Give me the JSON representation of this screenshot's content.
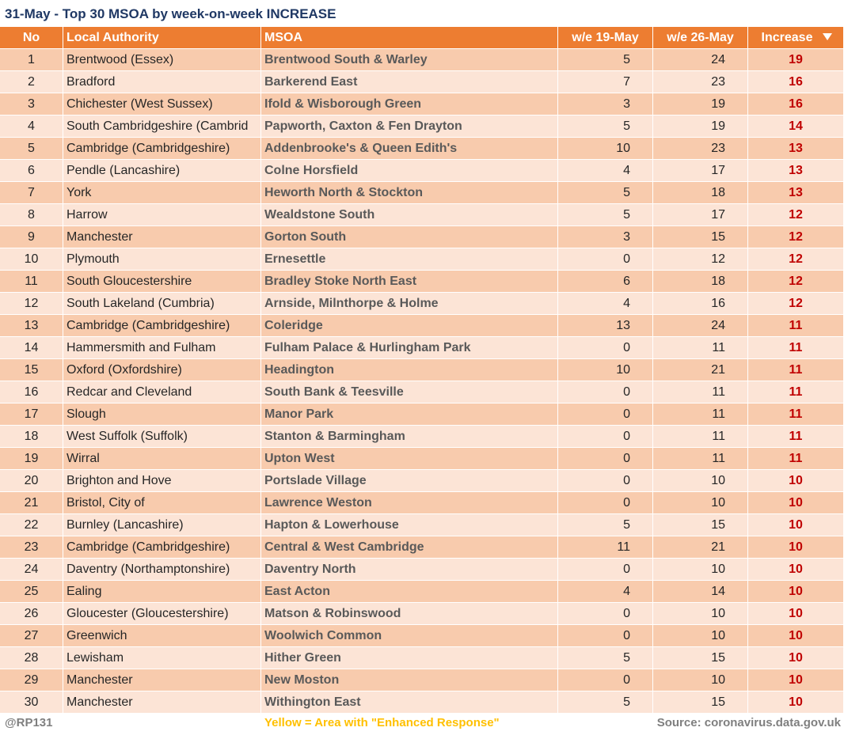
{
  "title": "31-May - Top 30 MSOA by week-on-week INCREASE",
  "table": {
    "header": [
      "No",
      "Local Authority",
      "MSOA",
      "w/e 19-May",
      "w/e 26-May",
      "Increase"
    ],
    "rows": [
      [
        1,
        "Brentwood (Essex)",
        "Brentwood South & Warley",
        5,
        24,
        19
      ],
      [
        2,
        "Bradford",
        "Barkerend East",
        7,
        23,
        16
      ],
      [
        3,
        "Chichester (West Sussex)",
        "Ifold & Wisborough Green",
        3,
        19,
        16
      ],
      [
        4,
        "South Cambridgeshire (Cambrid",
        "Papworth, Caxton & Fen Drayton",
        5,
        19,
        14
      ],
      [
        5,
        "Cambridge (Cambridgeshire)",
        "Addenbrooke's & Queen Edith's",
        10,
        23,
        13
      ],
      [
        6,
        "Pendle (Lancashire)",
        "Colne Horsfield",
        4,
        17,
        13
      ],
      [
        7,
        "York",
        "Heworth North & Stockton",
        5,
        18,
        13
      ],
      [
        8,
        "Harrow",
        "Wealdstone South",
        5,
        17,
        12
      ],
      [
        9,
        "Manchester",
        "Gorton South",
        3,
        15,
        12
      ],
      [
        10,
        "Plymouth",
        "Ernesettle",
        0,
        12,
        12
      ],
      [
        11,
        "South Gloucestershire",
        "Bradley Stoke North East",
        6,
        18,
        12
      ],
      [
        12,
        "South Lakeland (Cumbria)",
        "Arnside, Milnthorpe & Holme",
        4,
        16,
        12
      ],
      [
        13,
        "Cambridge (Cambridgeshire)",
        "Coleridge",
        13,
        24,
        11
      ],
      [
        14,
        "Hammersmith and Fulham",
        "Fulham Palace & Hurlingham Park",
        0,
        11,
        11
      ],
      [
        15,
        "Oxford (Oxfordshire)",
        "Headington",
        10,
        21,
        11
      ],
      [
        16,
        "Redcar and Cleveland",
        "South Bank & Teesville",
        0,
        11,
        11
      ],
      [
        17,
        "Slough",
        "Manor Park",
        0,
        11,
        11
      ],
      [
        18,
        "West Suffolk (Suffolk)",
        "Stanton & Barmingham",
        0,
        11,
        11
      ],
      [
        19,
        "Wirral",
        "Upton West",
        0,
        11,
        11
      ],
      [
        20,
        "Brighton and Hove",
        "Portslade Village",
        0,
        10,
        10
      ],
      [
        21,
        "Bristol, City of",
        "Lawrence Weston",
        0,
        10,
        10
      ],
      [
        22,
        "Burnley (Lancashire)",
        "Hapton & Lowerhouse",
        5,
        15,
        10
      ],
      [
        23,
        "Cambridge (Cambridgeshire)",
        "Central & West Cambridge",
        11,
        21,
        10
      ],
      [
        24,
        "Daventry (Northamptonshire)",
        "Daventry North",
        0,
        10,
        10
      ],
      [
        25,
        "Ealing",
        "East Acton",
        4,
        14,
        10
      ],
      [
        26,
        "Gloucester (Gloucestershire)",
        "Matson & Robinswood",
        0,
        10,
        10
      ],
      [
        27,
        "Greenwich",
        "Woolwich Common",
        0,
        10,
        10
      ],
      [
        28,
        "Lewisham",
        "Hither Green",
        5,
        15,
        10
      ],
      [
        29,
        "Manchester",
        "New Moston",
        0,
        10,
        10
      ],
      [
        30,
        "Manchester",
        "Withington East",
        5,
        15,
        10
      ]
    ]
  },
  "footer": {
    "handle": "@RP131",
    "note": "Yellow = Area with \"Enhanced Response\"",
    "source": "Source: coronavirus.data.gov.uk"
  }
}
